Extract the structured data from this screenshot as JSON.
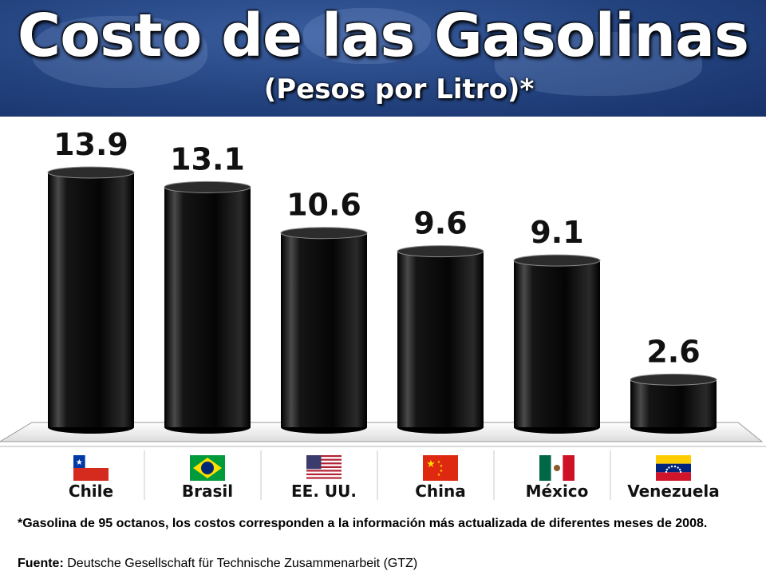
{
  "header": {
    "title": "Costo de las Gasolinas",
    "subtitle": "(Pesos por Litro)*"
  },
  "chart_data": {
    "type": "bar",
    "title": "Costo de las Gasolinas",
    "subtitle": "(Pesos por Litro)*",
    "categories": [
      "Chile",
      "Brasil",
      "EE. UU.",
      "China",
      "México",
      "Venezuela"
    ],
    "values": [
      13.9,
      13.1,
      10.6,
      9.6,
      9.1,
      2.6
    ],
    "data_labels": [
      "13.9",
      "13.1",
      "10.6",
      "9.6",
      "9.1",
      "2.6"
    ],
    "flag_icons": [
      "chile-flag-icon",
      "brazil-flag-icon",
      "usa-flag-icon",
      "china-flag-icon",
      "mexico-flag-icon",
      "venezuela-flag-icon"
    ],
    "bar_color": "#0a0a0a",
    "xlabel": "",
    "ylabel": "",
    "ylim": [
      0,
      15
    ],
    "grid": false,
    "legend": "none"
  },
  "footnote": {
    "note": "*Gasolina de 95 octanos, los costos corresponden a la información más actualizada de diferentes meses de 2008.",
    "source_label": "Fuente:",
    "source_text": "Deutsche Gesellschaft für Technische Zusammenarbeit (GTZ)"
  },
  "colors": {
    "header_blue": "#23437f",
    "title_text": "#ffffff",
    "bar": "#0a0a0a"
  }
}
